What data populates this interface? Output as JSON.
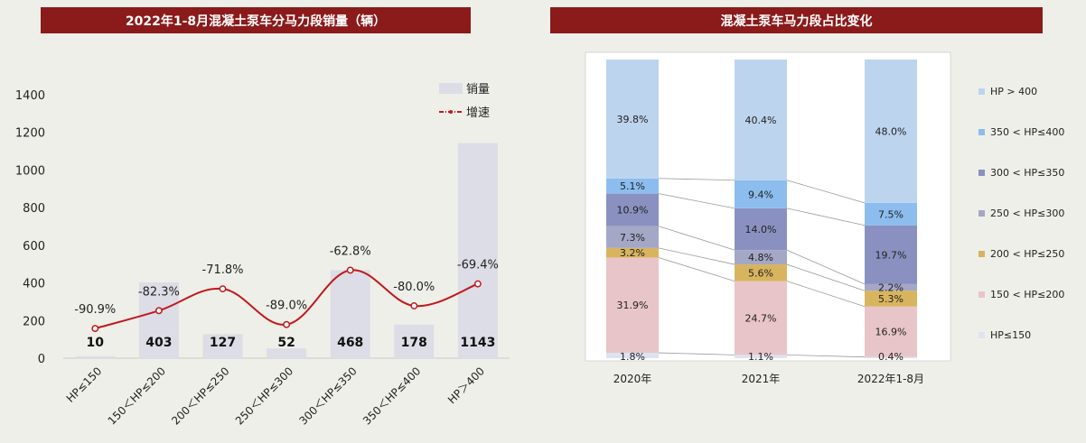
{
  "chart_data": [
    {
      "type": "bar",
      "title": "2022年1-8月混凝土泵车分马力段销量（辆）",
      "categories": [
        "HP≤150",
        "150＜HP≤200",
        "200＜HP≤250",
        "250＜HP≤300",
        "300＜HP≤350",
        "350＜HP≤400",
        "HP＞400"
      ],
      "series": [
        {
          "name": "销量",
          "type": "bar",
          "values": [
            10,
            403,
            127,
            52,
            468,
            178,
            1143
          ]
        },
        {
          "name": "增速",
          "type": "line",
          "values": [
            -90.9,
            -82.3,
            -71.8,
            -89.0,
            -62.8,
            -80.0,
            -69.4
          ],
          "labels": [
            "-90.9%",
            "-82.3%",
            "-71.8%",
            "-89.0%",
            "-62.8%",
            "-80.0%",
            "-69.4%"
          ]
        }
      ],
      "yticks": [
        "0",
        "200",
        "400",
        "600",
        "800",
        "1000",
        "1200",
        "1400"
      ],
      "ylim": [
        0,
        1400
      ],
      "legend_position": "top-right",
      "colors": {
        "bar": "#dcdde6",
        "line": "#c0191c"
      }
    },
    {
      "type": "stacked_bar",
      "title": "混凝土泵车马力段占比变化",
      "categories": [
        "2020年",
        "2021年",
        "2022年1-8月"
      ],
      "series": [
        {
          "name": "HP≤150",
          "color": "#dde3f1",
          "values": [
            1.8,
            1.1,
            0.4
          ],
          "labels": [
            "1.8%",
            "1.1%",
            "0.4%"
          ]
        },
        {
          "name": "150 < HP≤200",
          "color": "#e8c5c8",
          "values": [
            31.9,
            24.7,
            16.9
          ],
          "labels": [
            "31.9%",
            "24.7%",
            "16.9%"
          ]
        },
        {
          "name": "200 < HP≤250",
          "color": "#d8b45e",
          "values": [
            3.2,
            5.6,
            5.3
          ],
          "labels": [
            "3.2%",
            "5.6%",
            "5.3%"
          ]
        },
        {
          "name": "250 < HP≤300",
          "color": "#a4a7c6",
          "values": [
            7.3,
            4.8,
            2.2
          ],
          "labels": [
            "7.3%",
            "4.8%",
            "2.2%"
          ]
        },
        {
          "name": "300 < HP≤350",
          "color": "#8a91c0",
          "values": [
            10.9,
            14.0,
            19.7
          ],
          "labels": [
            "10.9%",
            "14.0%",
            "19.7%"
          ]
        },
        {
          "name": "350 < HP≤400",
          "color": "#8cbdee",
          "values": [
            5.1,
            9.4,
            7.5
          ],
          "labels": [
            "5.1%",
            "9.4%",
            "7.5%"
          ]
        },
        {
          "name": "HP > 400",
          "color": "#bdd4ee",
          "values": [
            39.8,
            40.4,
            48.0
          ],
          "labels": [
            "39.8%",
            "40.4%",
            "48.0%"
          ]
        }
      ],
      "legend_position": "right"
    }
  ]
}
